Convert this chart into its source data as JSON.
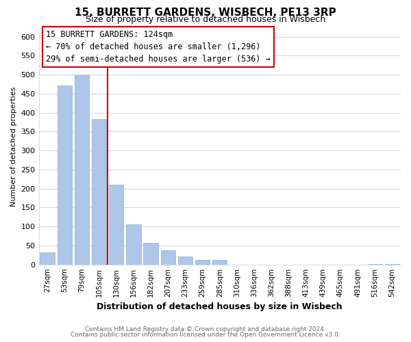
{
  "title": "15, BURRETT GARDENS, WISBECH, PE13 3RP",
  "subtitle": "Size of property relative to detached houses in Wisbech",
  "xlabel": "Distribution of detached houses by size in Wisbech",
  "ylabel": "Number of detached properties",
  "bin_labels": [
    "27sqm",
    "53sqm",
    "79sqm",
    "105sqm",
    "130sqm",
    "156sqm",
    "182sqm",
    "207sqm",
    "233sqm",
    "259sqm",
    "285sqm",
    "310sqm",
    "336sqm",
    "362sqm",
    "388sqm",
    "413sqm",
    "439sqm",
    "465sqm",
    "491sqm",
    "516sqm",
    "542sqm"
  ],
  "bar_heights": [
    32,
    472,
    498,
    383,
    210,
    106,
    57,
    37,
    21,
    12,
    12,
    0,
    0,
    0,
    0,
    0,
    0,
    0,
    0,
    2,
    2
  ],
  "bar_color": "#aec6e8",
  "bar_edge_color": "#8aafd4",
  "marker_bin_index": 4,
  "marker_color": "#cc0000",
  "annotation_title": "15 BURRETT GARDENS: 124sqm",
  "annotation_line1": "← 70% of detached houses are smaller (1,296)",
  "annotation_line2": "29% of semi-detached houses are larger (536) →",
  "annotation_box_facecolor": "#ffffff",
  "annotation_box_edgecolor": "#cc0000",
  "ylim": [
    0,
    620
  ],
  "yticks": [
    0,
    50,
    100,
    150,
    200,
    250,
    300,
    350,
    400,
    450,
    500,
    550,
    600
  ],
  "footer_line1": "Contains HM Land Registry data © Crown copyright and database right 2024.",
  "footer_line2": "Contains public sector information licensed under the Open Government Licence v3.0.",
  "bg_color": "#ffffff",
  "plot_bg_color": "#ffffff",
  "grid_color": "#d0d8e8",
  "title_fontsize": 11,
  "subtitle_fontsize": 9,
  "ylabel_fontsize": 8,
  "xlabel_fontsize": 9,
  "tick_fontsize": 8,
  "xtick_fontsize": 7.5,
  "footer_fontsize": 6.5,
  "ann_fontsize": 8.5
}
